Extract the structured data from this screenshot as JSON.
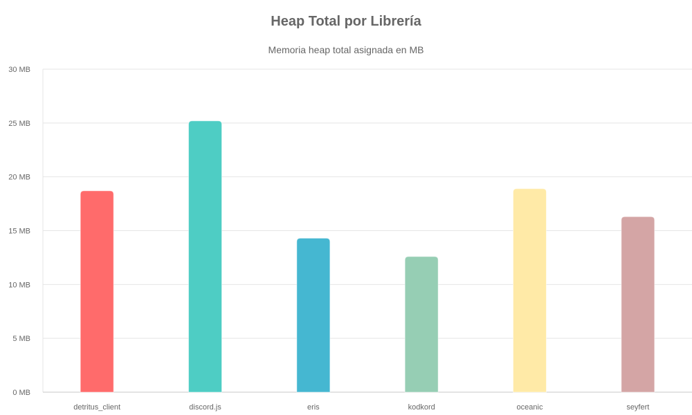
{
  "chart_data": {
    "type": "bar",
    "title": "Heap Total por Librería",
    "subtitle": "Memoria heap total asignada en MB",
    "categories": [
      "detritus_client",
      "discord.js",
      "eris",
      "kodkord",
      "oceanic",
      "seyfert"
    ],
    "values": [
      18.7,
      25.2,
      14.3,
      12.6,
      18.9,
      16.3
    ],
    "colors": [
      "#ff6b6b",
      "#4ecdc4",
      "#45b7d1",
      "#96ceb4",
      "#ffeaa7",
      "#d4a5a5"
    ],
    "ylim": [
      0,
      30
    ],
    "yticks": [
      0,
      5,
      10,
      15,
      20,
      25,
      30
    ],
    "ytick_labels": [
      "0 MB",
      "5 MB",
      "10 MB",
      "15 MB",
      "20 MB",
      "25 MB",
      "30 MB"
    ],
    "grid": true,
    "legend": "none"
  }
}
